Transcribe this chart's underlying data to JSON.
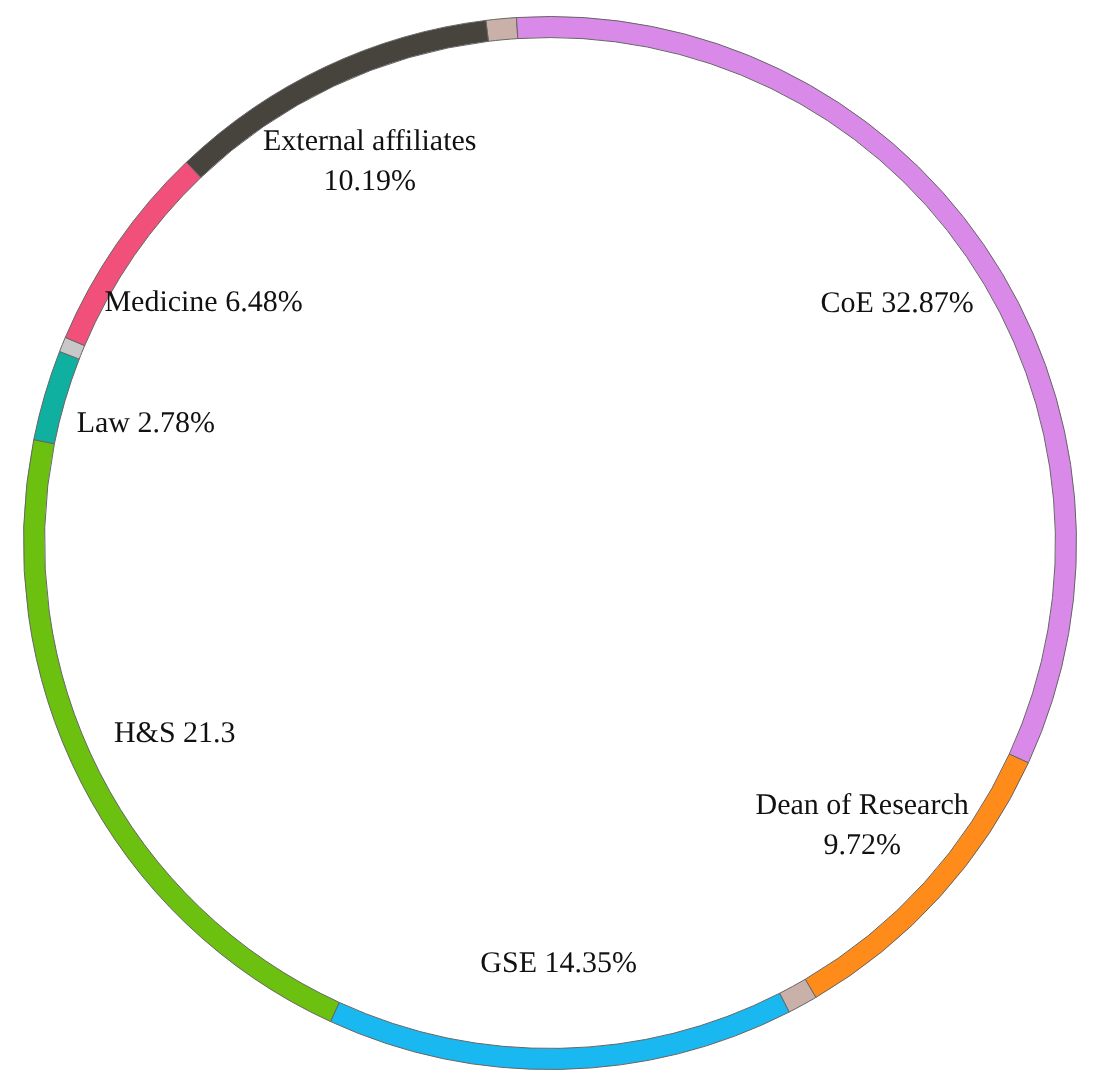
{
  "chart_data": {
    "type": "donut",
    "categories": [
      null,
      "CoE",
      "Dean of Research",
      null,
      "GSE",
      "H&S",
      "Law",
      null,
      "Medicine",
      "External affiliates"
    ],
    "values": [
      0.93,
      32.87,
      9.72,
      0.92,
      14.35,
      21.3,
      2.78,
      0.46,
      6.48,
      10.19
    ],
    "value_labels": [
      null,
      "32.87%",
      "9.72%",
      null,
      "14.35%",
      "21.3",
      "2.78%",
      null,
      "6.48%",
      "10.19%"
    ],
    "colors": [
      "#c9b1a9",
      "#d98ae8",
      "#ff8c1a",
      "#c9b1a9",
      "#1ab8f0",
      "#6cc010",
      "#10b0a0",
      "#c8c8c8",
      "#f0507a",
      "#47433d"
    ],
    "legend": false
  }
}
